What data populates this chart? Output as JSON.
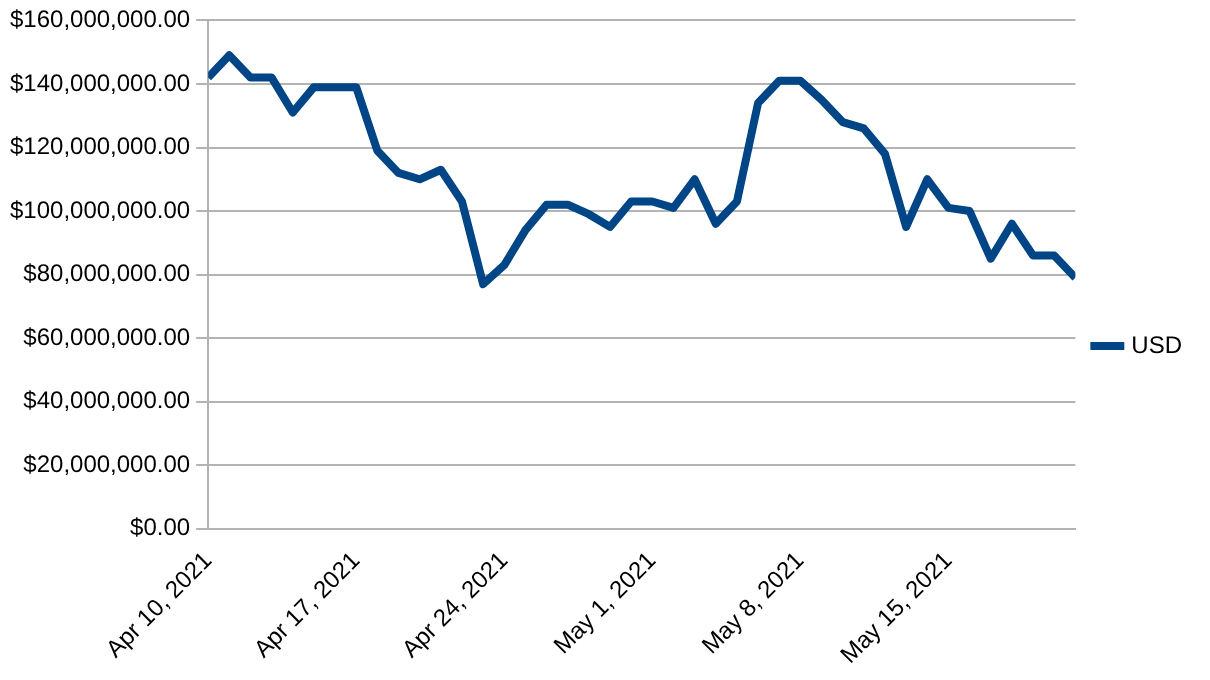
{
  "chart_data": {
    "type": "line",
    "x": [
      "2021-04-10",
      "2021-04-11",
      "2021-04-12",
      "2021-04-13",
      "2021-04-14",
      "2021-04-15",
      "2021-04-16",
      "2021-04-17",
      "2021-04-18",
      "2021-04-19",
      "2021-04-20",
      "2021-04-21",
      "2021-04-22",
      "2021-04-23",
      "2021-04-24",
      "2021-04-25",
      "2021-04-26",
      "2021-04-27",
      "2021-04-28",
      "2021-04-29",
      "2021-04-30",
      "2021-05-01",
      "2021-05-02",
      "2021-05-03",
      "2021-05-04",
      "2021-05-05",
      "2021-05-06",
      "2021-05-07",
      "2021-05-08",
      "2021-05-09",
      "2021-05-10",
      "2021-05-11",
      "2021-05-12",
      "2021-05-13",
      "2021-05-14",
      "2021-05-15",
      "2021-05-16",
      "2021-05-17",
      "2021-05-18",
      "2021-05-19",
      "2021-05-20",
      "2021-05-21"
    ],
    "series": [
      {
        "name": "USD",
        "color": "#004586",
        "values": [
          142000000,
          149000000,
          142000000,
          142000000,
          131000000,
          139000000,
          139000000,
          139000000,
          119000000,
          112000000,
          110000000,
          113000000,
          103000000,
          77000000,
          83000000,
          94000000,
          102000000,
          102000000,
          99000000,
          95000000,
          103000000,
          103000000,
          101000000,
          110000000,
          96000000,
          103000000,
          134000000,
          141000000,
          141000000,
          135000000,
          128000000,
          126000000,
          118000000,
          95000000,
          110000000,
          101000000,
          100000000,
          85000000,
          96000000,
          86000000,
          86000000,
          79000000
        ]
      }
    ],
    "xlim": [
      "2021-04-10",
      "2021-05-21"
    ],
    "xticks": [
      {
        "value": "2021-04-10",
        "label": "Apr 10, 2021"
      },
      {
        "value": "2021-04-17",
        "label": "Apr 17, 2021"
      },
      {
        "value": "2021-04-24",
        "label": "Apr 24, 2021"
      },
      {
        "value": "2021-05-01",
        "label": "May 1, 2021"
      },
      {
        "value": "2021-05-08",
        "label": "May 8, 2021"
      },
      {
        "value": "2021-05-15",
        "label": "May 15, 2021"
      }
    ],
    "ylim": [
      0,
      160000000
    ],
    "yticks": [
      {
        "value": 0,
        "label": "$0.00"
      },
      {
        "value": 20000000,
        "label": "$20,000,000.00"
      },
      {
        "value": 40000000,
        "label": "$40,000,000.00"
      },
      {
        "value": 60000000,
        "label": "$60,000,000.00"
      },
      {
        "value": 80000000,
        "label": "$80,000,000.00"
      },
      {
        "value": 100000000,
        "label": "$100,000,000.00"
      },
      {
        "value": 120000000,
        "label": "$120,000,000.00"
      },
      {
        "value": 140000000,
        "label": "$140,000,000.00"
      },
      {
        "value": 160000000,
        "label": "$160,000,000.00"
      }
    ],
    "grid": "y",
    "legend": "right",
    "marker": "none",
    "line_style": "solid"
  }
}
